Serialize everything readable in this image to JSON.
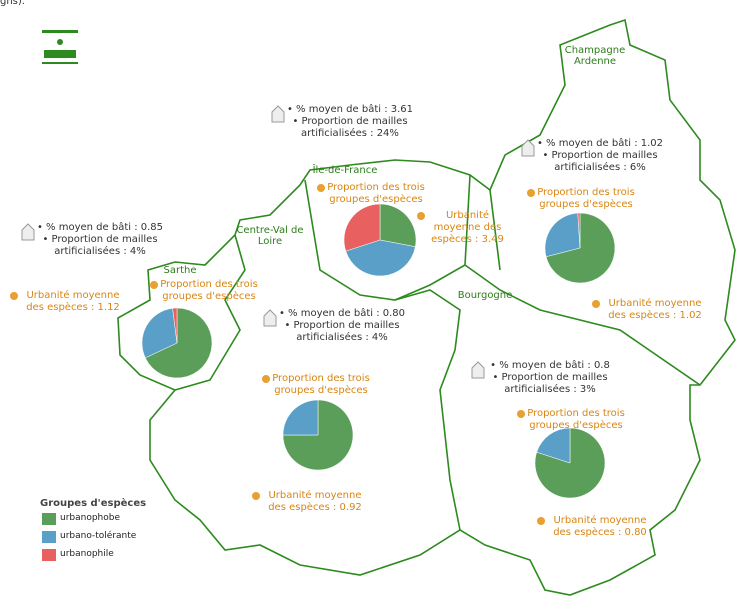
{
  "caption": "gns).",
  "regions": [
    {
      "name": "Île-de-France",
      "bati": "• % moyen de bâti : 3.61",
      "mailles": "• Proportion de mailles artificialisées : 24%",
      "pie_title": "Proportion des trois groupes d'espèces",
      "urbanite": "Urbanité moyenne des espèces : 3.49",
      "pie": [
        28,
        42,
        30
      ]
    },
    {
      "name": "Champagne Ardenne",
      "bati": "• % moyen de bâti : 1.02",
      "mailles": "• Proportion de mailles artificialisées : 6%",
      "pie_title": "Proportion des trois groupes d'espèces",
      "urbanite": "Urbanité moyenne des espèces : 1.02",
      "pie": [
        71,
        28,
        1
      ]
    },
    {
      "name": "Centre-Val de Loire",
      "bati": "• % moyen de bâti : 0.80",
      "mailles": "• Proportion de mailles artificialisées : 4%",
      "pie_title": "Proportion des trois groupes d'espèces",
      "urbanite": "Urbanité moyenne des espèces : 0.92",
      "pie": [
        75,
        25,
        0
      ]
    },
    {
      "name": "Sarthe",
      "bati": "• % moyen de bâti : 0.85",
      "mailles": "• Proportion de mailles artificialisées : 4%",
      "pie_title": "Proportion des trois groupes d'espèces",
      "urbanite": "Urbanité moyenne des espèces : 1.12",
      "pie": [
        68,
        30,
        2
      ]
    },
    {
      "name": "Bourgogne",
      "bati": "• % moyen de bâti : 0.8",
      "mailles": "• Proportion de mailles artificialisées : 3%",
      "pie_title": "Proportion des trois groupes d'espèces",
      "urbanite": "Urbanité moyenne des espèces : 0.80",
      "pie": [
        80,
        20,
        0
      ]
    }
  ],
  "legend": {
    "title": "Groupes d'espèces",
    "items": [
      {
        "name": "urbanophobe",
        "color": "#5a9e5a"
      },
      {
        "name": "urbano-tolérante",
        "color": "#5a9fc8"
      },
      {
        "name": "urbanophile",
        "color": "#e86060"
      }
    ]
  }
}
